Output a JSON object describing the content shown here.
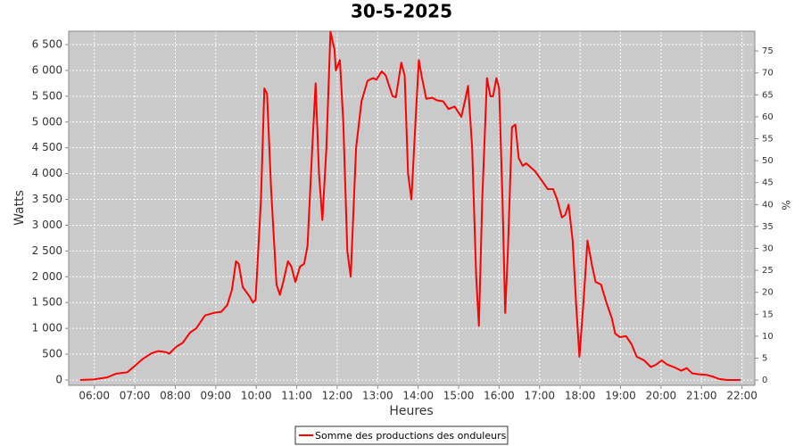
{
  "chart_data": {
    "type": "line",
    "title": "30-5-2025",
    "x_label": "Heures",
    "y_label": "Watts",
    "y2_label": "%",
    "background": "#cacaca",
    "grid": true,
    "xlim": [
      "05:22",
      "22:19"
    ],
    "xticks": [
      "06:00",
      "07:00",
      "08:00",
      "09:00",
      "10:00",
      "11:00",
      "12:00",
      "13:00",
      "14:00",
      "15:00",
      "16:00",
      "17:00",
      "18:00",
      "19:00",
      "20:00",
      "21:00",
      "22:00"
    ],
    "ylim": [
      -104,
      6759
    ],
    "yticks": [
      0,
      500,
      {
        "value": 1000,
        "label": "1 000"
      },
      {
        "value": 1500,
        "label": "1 500"
      },
      {
        "value": 2000,
        "label": "2 000"
      },
      {
        "value": 2500,
        "label": "2 500"
      },
      {
        "value": 3000,
        "label": "3 000"
      },
      {
        "value": 3500,
        "label": "3 500"
      },
      {
        "value": 4000,
        "label": "4 000"
      },
      {
        "value": 4500,
        "label": "4 500"
      },
      {
        "value": 5000,
        "label": "5 000"
      },
      {
        "value": 5500,
        "label": "5 500"
      },
      {
        "value": 6000,
        "label": "6 000"
      },
      {
        "value": 6500,
        "label": "6 500"
      }
    ],
    "y2lim": [
      -1.2,
      79.5
    ],
    "y2ticks": [
      0,
      5,
      10,
      15,
      20,
      25,
      30,
      35,
      40,
      45,
      50,
      55,
      60,
      65,
      70,
      75
    ],
    "x": [
      "05:39",
      "05:59",
      "06:19",
      "06:32",
      "06:49",
      "06:58",
      "07:11",
      "07:25",
      "07:35",
      "07:46",
      "07:51",
      "08:02",
      "08:11",
      "08:22",
      "08:31",
      "08:44",
      "08:57",
      "09:08",
      "09:17",
      "09:24",
      "09:30",
      "09:34",
      "09:40",
      "09:50",
      "09:55",
      "09:59",
      "10:07",
      "10:12",
      "10:16",
      "10:22",
      "10:30",
      "10:35",
      "10:40",
      "10:47",
      "10:52",
      "10:58",
      "11:05",
      "11:11",
      "11:16",
      "11:23",
      "11:28",
      "11:33",
      "11:38",
      "11:44",
      "11:50",
      "11:56",
      "11:58",
      "12:04",
      "12:09",
      "12:15",
      "12:20",
      "12:28",
      "12:36",
      "12:45",
      "12:53",
      "12:58",
      "13:06",
      "13:12",
      "13:22",
      "13:27",
      "13:35",
      "13:40",
      "13:45",
      "13:50",
      "13:56",
      "14:01",
      "14:05",
      "14:12",
      "14:21",
      "14:28",
      "14:37",
      "14:45",
      "14:54",
      "15:04",
      "15:10",
      "15:14",
      "15:20",
      "15:26",
      "15:30",
      "15:35",
      "15:42",
      "15:47",
      "15:51",
      "15:56",
      "16:00",
      "16:05",
      "16:09",
      "16:13",
      "16:19",
      "16:24",
      "16:29",
      "16:35",
      "16:40",
      "16:53",
      "17:04",
      "17:12",
      "17:20",
      "17:26",
      "17:33",
      "17:38",
      "17:43",
      "17:49",
      "17:54",
      "17:59",
      "18:05",
      "18:11",
      "18:18",
      "18:23",
      "18:31",
      "18:39",
      "18:47",
      "18:52",
      "18:59",
      "19:08",
      "19:16",
      "19:24",
      "19:35",
      "19:45",
      "19:53",
      "20:01",
      "20:09",
      "20:19",
      "20:30",
      "20:38",
      "20:46",
      "20:56",
      "21:07",
      "21:18",
      "21:26",
      "21:38",
      "21:58"
    ],
    "series": [
      {
        "name": "Somme des productions des onduleurs",
        "color": "#ff0000",
        "values": [
          0,
          10,
          50,
          120,
          150,
          250,
          400,
          520,
          560,
          540,
          510,
          650,
          720,
          920,
          1000,
          1250,
          1300,
          1320,
          1450,
          1750,
          2300,
          2250,
          1800,
          1620,
          1500,
          1550,
          3500,
          5650,
          5550,
          3700,
          1850,
          1650,
          1900,
          2300,
          2200,
          1900,
          2200,
          2250,
          2600,
          4500,
          5750,
          4000,
          3100,
          4500,
          6750,
          6400,
          6000,
          6200,
          5000,
          2500,
          2000,
          4500,
          5400,
          5800,
          5850,
          5820,
          5980,
          5900,
          5500,
          5480,
          6150,
          5900,
          4000,
          3500,
          5000,
          6200,
          5900,
          5450,
          5470,
          5420,
          5400,
          5250,
          5300,
          5100,
          5450,
          5700,
          4500,
          2000,
          1050,
          3500,
          5850,
          5500,
          5500,
          5850,
          5650,
          3500,
          1300,
          2500,
          4900,
          4950,
          4300,
          4150,
          4200,
          4050,
          3850,
          3700,
          3700,
          3500,
          3150,
          3200,
          3400,
          2700,
          1500,
          450,
          1500,
          2700,
          2200,
          1900,
          1850,
          1500,
          1200,
          900,
          830,
          850,
          700,
          450,
          380,
          250,
          300,
          380,
          300,
          250,
          180,
          230,
          130,
          110,
          100,
          60,
          20,
          0,
          0
        ]
      }
    ]
  }
}
